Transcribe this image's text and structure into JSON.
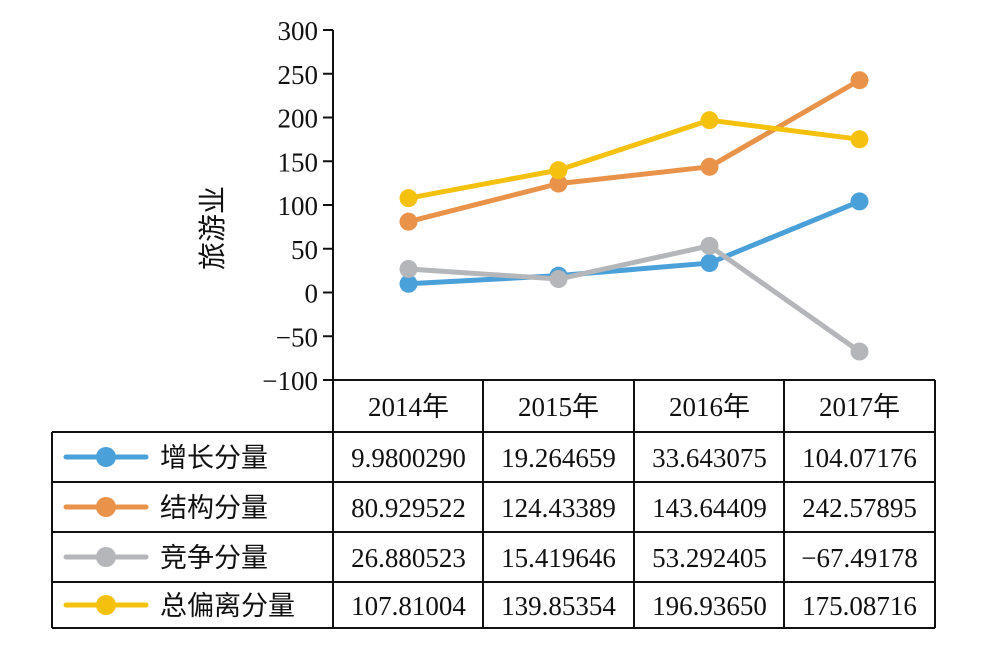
{
  "chart_data": {
    "type": "line",
    "ylabel": "旅游业",
    "ylim": [
      -100,
      300
    ],
    "yticks": [
      "300",
      "250",
      "200",
      "150",
      "100",
      "50",
      "0",
      "-50",
      "-100"
    ],
    "categories": [
      "2014年",
      "2015年",
      "2016年",
      "2017年"
    ],
    "grid": false,
    "legend": "data-table",
    "series": [
      {
        "name": "增长分量",
        "color": "#4AA0D8",
        "values": [
          9.980029,
          19.264659,
          33.643075,
          104.07176
        ],
        "labels": [
          "9.9800290",
          "19.264659",
          "33.643075",
          "104.07176"
        ]
      },
      {
        "name": "结构分量",
        "color": "#E8924A",
        "values": [
          80.929522,
          124.43389,
          143.64409,
          242.57895
        ],
        "labels": [
          "80.929522",
          "124.43389",
          "143.64409",
          "242.57895"
        ]
      },
      {
        "name": "竞争分量",
        "color": "#B4B6BA",
        "values": [
          26.880523,
          15.419646,
          53.292405,
          -67.49178
        ],
        "labels": [
          "26.880523",
          "15.419646",
          "53.292405",
          "−67.49178"
        ]
      },
      {
        "name": "总偏离分量",
        "color": "#F4C20E",
        "values": [
          107.81004,
          139.85354,
          196.9365,
          175.08716
        ],
        "labels": [
          "107.81004",
          "139.85354",
          "196.93650",
          "175.08716"
        ]
      }
    ]
  }
}
